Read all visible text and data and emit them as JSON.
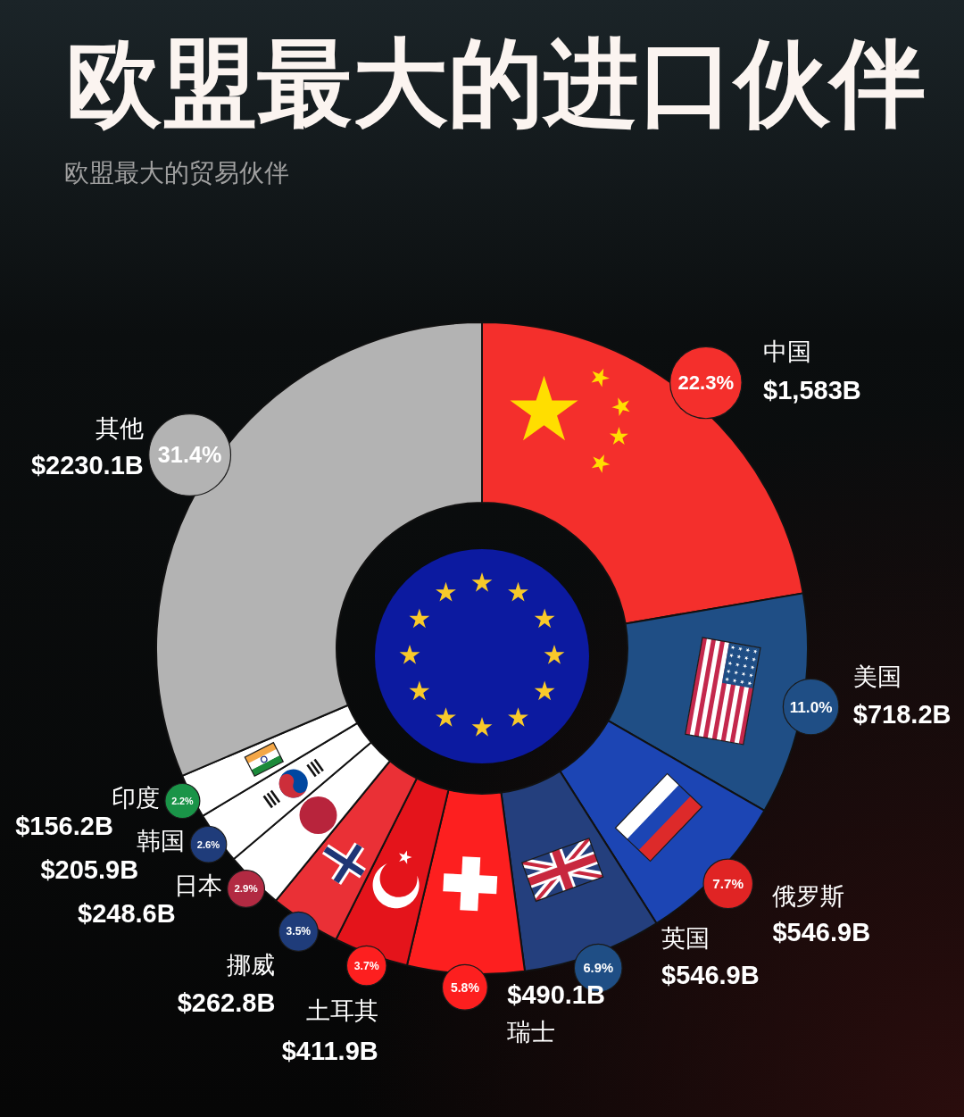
{
  "chart_data": {
    "type": "donut",
    "title": "欧盟最大的进口伙伴",
    "subtitle": "欧盟最大的贸易伙伴",
    "categories": [
      "中国",
      "美国",
      "俄罗斯",
      "英国",
      "瑞士",
      "土耳其",
      "挪威",
      "日本",
      "韩国",
      "印度",
      "其他"
    ],
    "values": [
      22.3,
      11.0,
      7.7,
      6.9,
      5.8,
      3.7,
      3.5,
      2.9,
      2.6,
      2.2,
      31.4
    ],
    "colors": [
      "#f42f2c",
      "#1f4e85",
      "#1c45b4",
      "#243f7d",
      "#fd1f1f",
      "#e4141b",
      "#ea3036",
      "#ffffff",
      "#ffffff",
      "#ffffff",
      "#b3b3b3"
    ],
    "value_labels": [
      "22.3%",
      "11.0%",
      "7.7%",
      "6.9%",
      "5.8%",
      "3.7%",
      "3.5%",
      "2.9%",
      "2.6%",
      "2.2%",
      "31.4%"
    ],
    "annotations": [
      {
        "text": "$1,583B",
        "x": "中国"
      },
      {
        "text": "$718.2B",
        "x": "美国"
      },
      {
        "text": "$546.9B",
        "x": "俄罗斯"
      },
      {
        "text": "$546.9B",
        "x": "英国"
      },
      {
        "text": "$490.1B",
        "x": "瑞士"
      },
      {
        "text": "$411.9B",
        "x": "土耳其"
      },
      {
        "text": "$262.8B",
        "x": "挪威"
      },
      {
        "text": "$248.6B",
        "x": "日本"
      },
      {
        "text": "$205.9B",
        "x": "韩国"
      },
      {
        "text": "$156.2B",
        "x": "印度"
      },
      {
        "text": "$2230.1B",
        "x": "其他"
      }
    ]
  }
}
